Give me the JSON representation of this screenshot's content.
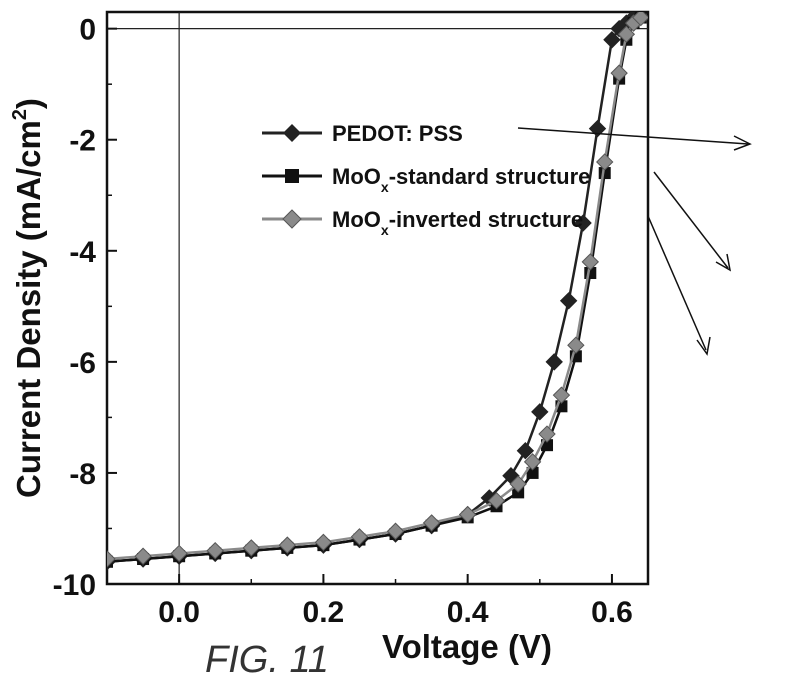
{
  "figure_label": "FIG. 11",
  "chart_data": {
    "type": "line",
    "xlabel": "Voltage (V)",
    "ylabel_main": "Current Density (mA/cm",
    "ylabel_sup": "2",
    "ylabel_close": ")",
    "xlim": [
      -0.1,
      0.65
    ],
    "ylim": [
      -10,
      0.3
    ],
    "x_ticks": [
      0.0,
      0.2,
      0.4,
      0.6
    ],
    "x_tick_labels": [
      "0.0",
      "0.2",
      "0.4",
      "0.6"
    ],
    "y_ticks": [
      0,
      -2,
      -4,
      -6,
      -8,
      -10
    ],
    "y_tick_labels": [
      "0",
      "-2",
      "-4",
      "-6",
      "-8",
      "-10"
    ],
    "reference_lines": {
      "x": 0,
      "y": 0
    },
    "legend_placement": "top-right",
    "series": [
      {
        "name": "PEDOT: PSS",
        "marker": "diamond",
        "color": "#222222",
        "x": [
          -0.1,
          -0.05,
          0.0,
          0.05,
          0.1,
          0.15,
          0.2,
          0.25,
          0.3,
          0.35,
          0.4,
          0.43,
          0.46,
          0.48,
          0.5,
          0.52,
          0.54,
          0.56,
          0.58,
          0.6,
          0.61,
          0.62,
          0.63
        ],
        "y": [
          -9.6,
          -9.55,
          -9.5,
          -9.45,
          -9.4,
          -9.35,
          -9.3,
          -9.2,
          -9.1,
          -8.95,
          -8.75,
          -8.45,
          -8.05,
          -7.6,
          -6.9,
          -6.0,
          -4.9,
          -3.5,
          -1.8,
          -0.2,
          0.0,
          0.1,
          0.2
        ]
      },
      {
        "name": "MoO_x-standard structure",
        "name_prefix": "MoO",
        "name_sub": "x",
        "name_suffix": "-standard structure",
        "marker": "square",
        "color": "#111111",
        "x": [
          -0.1,
          -0.05,
          0.0,
          0.05,
          0.1,
          0.15,
          0.2,
          0.25,
          0.3,
          0.35,
          0.4,
          0.44,
          0.47,
          0.49,
          0.51,
          0.53,
          0.55,
          0.57,
          0.59,
          0.61,
          0.62,
          0.63,
          0.64
        ],
        "y": [
          -9.6,
          -9.55,
          -9.5,
          -9.45,
          -9.4,
          -9.35,
          -9.3,
          -9.2,
          -9.1,
          -8.95,
          -8.8,
          -8.6,
          -8.35,
          -8.0,
          -7.5,
          -6.8,
          -5.9,
          -4.4,
          -2.6,
          -0.9,
          -0.2,
          0.1,
          0.2
        ]
      },
      {
        "name": "MoO_x-inverted structure",
        "name_prefix": "MoO",
        "name_sub": "x",
        "name_suffix": "-inverted structure",
        "marker": "diamond",
        "color": "#8a8a8a",
        "x": [
          -0.1,
          -0.05,
          0.0,
          0.05,
          0.1,
          0.15,
          0.2,
          0.25,
          0.3,
          0.35,
          0.4,
          0.44,
          0.47,
          0.49,
          0.51,
          0.53,
          0.55,
          0.57,
          0.59,
          0.61,
          0.62,
          0.63,
          0.64
        ],
        "y": [
          -9.55,
          -9.5,
          -9.45,
          -9.4,
          -9.35,
          -9.3,
          -9.25,
          -9.15,
          -9.05,
          -8.9,
          -8.75,
          -8.5,
          -8.2,
          -7.8,
          -7.3,
          -6.6,
          -5.7,
          -4.2,
          -2.4,
          -0.8,
          -0.1,
          0.1,
          0.2
        ]
      }
    ]
  }
}
